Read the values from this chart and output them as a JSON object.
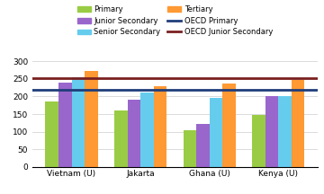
{
  "categories": [
    "Vietnam (U)",
    "Jakarta",
    "Ghana (U)",
    "Kenya (U)"
  ],
  "series": {
    "Primary": [
      185,
      160,
      103,
      147
    ],
    "Junior Secondary": [
      240,
      190,
      122,
      200
    ],
    "Senior Secondary": [
      255,
      212,
      197,
      200
    ],
    "Tertiary": [
      273,
      228,
      238,
      247
    ]
  },
  "bar_colors": {
    "Primary": "#99cc44",
    "Junior Secondary": "#9966cc",
    "Senior Secondary": "#66ccee",
    "Tertiary": "#ff9933"
  },
  "oecd_primary": 220,
  "oecd_junior_secondary": 251,
  "oecd_primary_color": "#1f3d7a",
  "oecd_junior_secondary_color": "#7a2020",
  "ylim": [
    0,
    320
  ],
  "yticks": [
    0,
    50,
    100,
    150,
    200,
    250,
    300
  ],
  "background_color": "#ffffff",
  "legend_fontsize": 6.0,
  "tick_fontsize": 6.5,
  "bar_width": 0.19
}
